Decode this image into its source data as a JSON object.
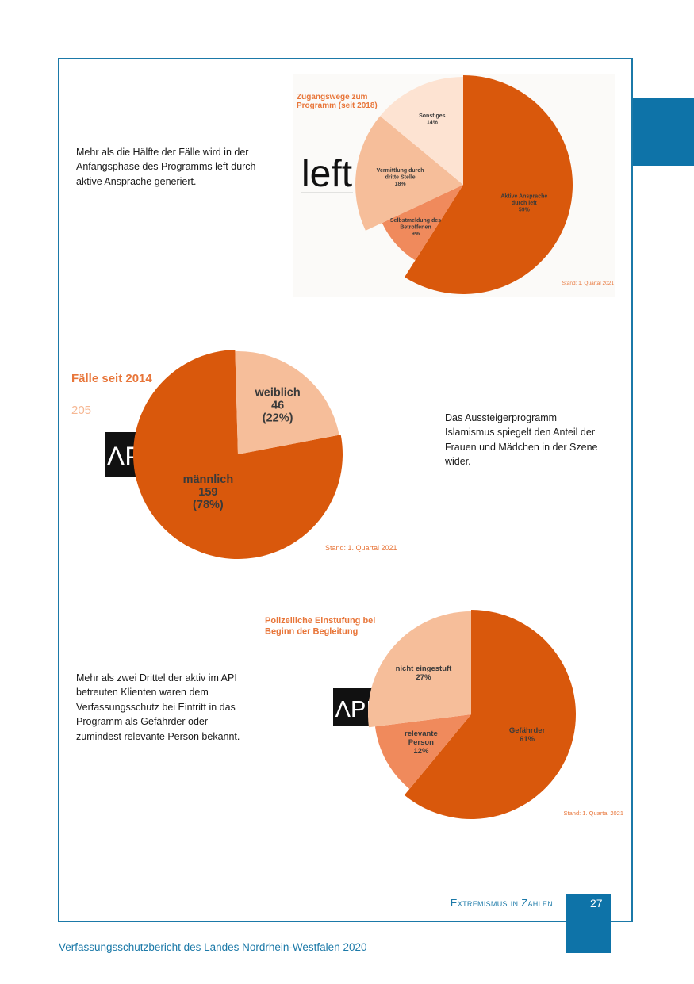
{
  "texts": {
    "left_caption": "Mehr als die Hälfte der Fälle wird in der Anfangsphase des Programms left durch aktive Ansprache generiert.",
    "api_caption": "Das Aussteigerprogramm Islamismus spiegelt den Anteil der Frauen und Mädchen in der Szene wider.",
    "police_caption": "Mehr als zwei Drittel der aktiv im API betreuten Klienten waren dem Verfassungsschutz bei Eintritt in das Programm als Gefährder oder zumindest relevante Person bekannt."
  },
  "footer": {
    "section_title": "Extremismus in Zahlen",
    "page_number": "27",
    "report_title": "Verfassungsschutzbericht des Landes Nordrhein-Westfalen 2020"
  },
  "logos": {
    "left": "left",
    "api": "ΛPI"
  },
  "chart_data": [
    {
      "type": "pie",
      "title": "Zugangswege zum Programm (seit 2018)",
      "title_lines": [
        "Zugangswege zum",
        "Programm (seit 2018)"
      ],
      "stand": "Stand: 1. Quartal 2021",
      "slices": [
        {
          "label_lines": [
            "Aktive Ansprache",
            "durch left",
            "59%"
          ],
          "value": 59,
          "color": "#d9580c"
        },
        {
          "label_lines": [
            "Selbstmeldung des",
            "Betroffenen",
            "9%"
          ],
          "value": 9,
          "color": "#f08a5c"
        },
        {
          "label_lines": [
            "Vermittlung durch",
            "dritte Stelle",
            "18%"
          ],
          "value": 18,
          "color": "#f6be9a"
        },
        {
          "label_lines": [
            "Sonstiges",
            "14%"
          ],
          "value": 14,
          "color": "#fde3d2"
        }
      ]
    },
    {
      "type": "pie",
      "title": "Fälle seit 2014",
      "total": "205",
      "stand": "Stand: 1. Quartal 2021",
      "slices": [
        {
          "label_lines": [
            "männlich",
            "159",
            "(78%)"
          ],
          "value": 159,
          "color": "#d9580c"
        },
        {
          "label_lines": [
            "weiblich",
            "46",
            "(22%)"
          ],
          "value": 46,
          "color": "#f6be9a"
        }
      ]
    },
    {
      "type": "pie",
      "title": "Polizeiliche Einstufung bei Beginn der Begleitung",
      "title_lines": [
        "Polizeiliche Einstufung bei",
        "Beginn der Begleitung"
      ],
      "stand": "Stand: 1. Quartal 2021",
      "slices": [
        {
          "label_lines": [
            "Gefährder",
            "61%"
          ],
          "value": 61,
          "color": "#d9580c"
        },
        {
          "label_lines": [
            "relevante",
            "Person",
            "12%"
          ],
          "value": 12,
          "color": "#f08a5c"
        },
        {
          "label_lines": [
            "nicht eingestuft",
            "27%"
          ],
          "value": 27,
          "color": "#f6be9a"
        }
      ]
    }
  ]
}
